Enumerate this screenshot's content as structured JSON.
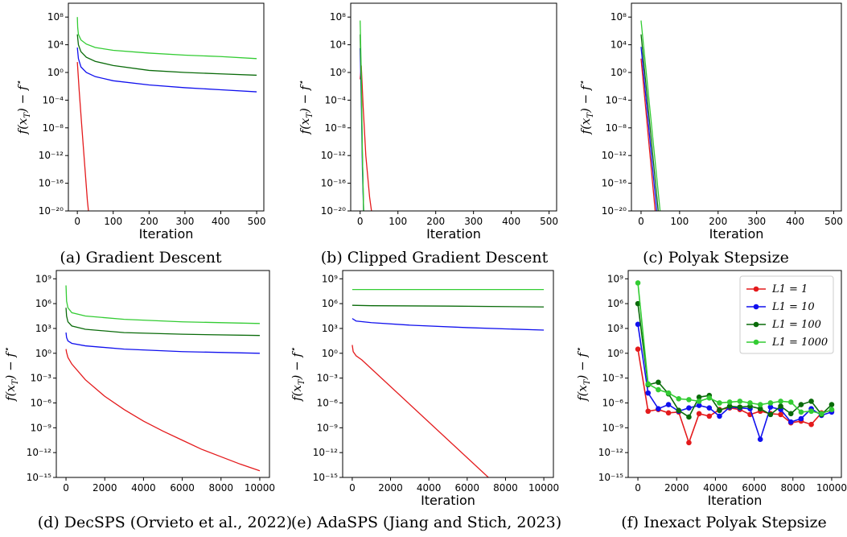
{
  "colors": {
    "L1=1": "#e41a1c",
    "L1=10": "#1010ee",
    "L1=100": "#0a6b0a",
    "L1=1000": "#33cc33"
  },
  "chart_data": [
    {
      "id": "a",
      "type": "line",
      "caption": "(a) Gradient Descent",
      "xlabel": "Iteration",
      "ylabel": "f(x_T) − f*",
      "yscale": "log",
      "xlim": [
        -25,
        520
      ],
      "ylim_exp": [
        -20,
        10
      ],
      "xticks": [
        0,
        100,
        200,
        300,
        400,
        500
      ],
      "ytick_exps": [
        -20,
        -16,
        -12,
        -8,
        -4,
        0,
        4,
        8
      ],
      "series": [
        {
          "key": "L1=1",
          "x": [
            0,
            5,
            12,
            20,
            28,
            35
          ],
          "y_exp": [
            1.5,
            -2.5,
            -7.5,
            -13,
            -18.5,
            -22
          ]
        },
        {
          "key": "L1=10",
          "x": [
            0,
            3,
            10,
            25,
            50,
            100,
            200,
            300,
            400,
            500
          ],
          "y_exp": [
            3.6,
            2,
            0.8,
            0,
            -0.6,
            -1.2,
            -1.8,
            -2.2,
            -2.5,
            -2.8
          ]
        },
        {
          "key": "L1=100",
          "x": [
            0,
            3,
            10,
            25,
            50,
            100,
            200,
            300,
            400,
            500
          ],
          "y_exp": [
            5.5,
            4,
            3,
            2.2,
            1.6,
            1,
            0.3,
            0,
            -0.2,
            -0.4
          ]
        },
        {
          "key": "L1=1000",
          "x": [
            0,
            1,
            3,
            10,
            25,
            50,
            100,
            200,
            300,
            400,
            500
          ],
          "y_exp": [
            8,
            6.5,
            5.5,
            4.7,
            4.1,
            3.6,
            3.2,
            2.8,
            2.5,
            2.3,
            2.0
          ]
        }
      ]
    },
    {
      "id": "b",
      "type": "line",
      "caption": "(b) Clipped Gradient Descent",
      "xlabel": "Iteration",
      "ylabel": "f(x_T) − f*",
      "yscale": "log",
      "xlim": [
        -25,
        520
      ],
      "ylim_exp": [
        -20,
        10
      ],
      "xticks": [
        0,
        100,
        200,
        300,
        400,
        500
      ],
      "ytick_exps": [
        -20,
        -16,
        -12,
        -8,
        -4,
        0,
        4,
        8
      ],
      "series": [
        {
          "key": "L1=1",
          "x": [
            0,
            3,
            8,
            15,
            25,
            35
          ],
          "y_exp": [
            -1,
            1,
            -5,
            -12,
            -18,
            -22
          ]
        },
        {
          "key": "L1=10",
          "x": [
            0,
            3,
            6,
            10
          ],
          "y_exp": [
            3.5,
            -4,
            -14,
            -22
          ]
        },
        {
          "key": "L1=100",
          "x": [
            0,
            3,
            6,
            10
          ],
          "y_exp": [
            5.5,
            -2,
            -12,
            -22
          ]
        },
        {
          "key": "L1=1000",
          "x": [
            0,
            3,
            6,
            10
          ],
          "y_exp": [
            7.5,
            0,
            -12,
            -22
          ]
        }
      ]
    },
    {
      "id": "c",
      "type": "line",
      "caption": "(c) Polyak Stepsize",
      "xlabel": "Iteration",
      "ylabel": "f(x_T) − f*",
      "yscale": "log",
      "xlim": [
        -25,
        520
      ],
      "ylim_exp": [
        -20,
        10
      ],
      "xticks": [
        0,
        100,
        200,
        300,
        400,
        500
      ],
      "ytick_exps": [
        -20,
        -16,
        -12,
        -8,
        -4,
        0,
        4,
        8
      ],
      "series": [
        {
          "key": "L1=1",
          "x": [
            0,
            40
          ],
          "y_exp": [
            2,
            -22
          ]
        },
        {
          "key": "L1=10",
          "x": [
            0,
            44
          ],
          "y_exp": [
            3.7,
            -22
          ]
        },
        {
          "key": "L1=100",
          "x": [
            0,
            48
          ],
          "y_exp": [
            5.5,
            -22
          ]
        },
        {
          "key": "L1=1000",
          "x": [
            0,
            53
          ],
          "y_exp": [
            7.5,
            -22
          ]
        }
      ]
    },
    {
      "id": "d",
      "type": "line",
      "caption": "(d) DecSPS (Orvieto et al., 2022)",
      "xlabel": "",
      "ylabel": "f(x_T) − f*",
      "yscale": "log",
      "xlim": [
        -500,
        10500
      ],
      "ylim_exp": [
        -15,
        10
      ],
      "xticks": [
        0,
        2000,
        4000,
        6000,
        8000,
        10000
      ],
      "ytick_exps": [
        -15,
        -12,
        -9,
        -6,
        -3,
        0,
        3,
        6,
        9
      ],
      "series": [
        {
          "key": "L1=1",
          "x": [
            0,
            30,
            100,
            300,
            1000,
            2000,
            3000,
            4000,
            5000,
            6000,
            7000,
            8000,
            9000,
            10000
          ],
          "y_exp": [
            0.5,
            0.1,
            -0.5,
            -1.3,
            -3.2,
            -5.2,
            -6.8,
            -8.2,
            -9.4,
            -10.5,
            -11.6,
            -12.5,
            -13.4,
            -14.2
          ]
        },
        {
          "key": "L1=10",
          "x": [
            0,
            30,
            100,
            300,
            1000,
            3000,
            6000,
            10000
          ],
          "y_exp": [
            2.5,
            1.9,
            1.5,
            1.2,
            0.9,
            0.5,
            0.2,
            0
          ]
        },
        {
          "key": "L1=100",
          "x": [
            0,
            30,
            100,
            300,
            1000,
            3000,
            6000,
            10000
          ],
          "y_exp": [
            5.5,
            4.5,
            3.8,
            3.3,
            2.9,
            2.5,
            2.3,
            2.15
          ]
        },
        {
          "key": "L1=1000",
          "x": [
            0,
            30,
            100,
            300,
            1000,
            3000,
            6000,
            10000
          ],
          "y_exp": [
            8.2,
            6.3,
            5.5,
            4.9,
            4.5,
            4.1,
            3.8,
            3.6
          ]
        }
      ]
    },
    {
      "id": "e",
      "type": "line",
      "caption": "(e) AdaSPS (Jiang and Stich, 2023)",
      "xlabel": "Iteration",
      "ylabel": "f(x_T) − f*",
      "yscale": "log",
      "xlim": [
        -500,
        10500
      ],
      "ylim_exp": [
        -15,
        10
      ],
      "xticks": [
        0,
        2000,
        4000,
        6000,
        8000,
        10000
      ],
      "ytick_exps": [
        -15,
        -12,
        -9,
        -6,
        -3,
        0,
        3,
        6,
        9
      ],
      "series": [
        {
          "key": "L1=1",
          "x": [
            0,
            50,
            200,
            500,
            7200
          ],
          "y_exp": [
            1,
            0.2,
            -0.3,
            -0.8,
            -15.2
          ]
        },
        {
          "key": "L1=10",
          "x": [
            0,
            200,
            1000,
            3000,
            6000,
            10000
          ],
          "y_exp": [
            4.2,
            3.9,
            3.7,
            3.4,
            3.1,
            2.8
          ]
        },
        {
          "key": "L1=100",
          "x": [
            0,
            1000,
            5000,
            10000
          ],
          "y_exp": [
            5.8,
            5.75,
            5.7,
            5.6
          ]
        },
        {
          "key": "L1=1000",
          "x": [
            0,
            10000
          ],
          "y_exp": [
            7.7,
            7.7
          ]
        }
      ]
    },
    {
      "id": "f",
      "type": "line",
      "caption": "(f) Inexact Polyak Stepsize",
      "xlabel": "Iteration",
      "ylabel": "f(x_T) − f*",
      "yscale": "log",
      "markers": true,
      "legend_position": "top-right",
      "xlim": [
        -500,
        10500
      ],
      "ylim_exp": [
        -15,
        10
      ],
      "xticks": [
        0,
        2000,
        4000,
        6000,
        8000,
        10000
      ],
      "ytick_exps": [
        -15,
        -12,
        -9,
        -6,
        -3,
        0,
        3,
        6,
        9
      ],
      "series": [
        {
          "key": "L1=1",
          "label": "L1 = 1",
          "x": [
            0,
            526,
            1053,
            1579,
            2105,
            2632,
            3158,
            3684,
            4211,
            4737,
            5263,
            5789,
            6316,
            6842,
            7368,
            7895,
            8421,
            8947,
            9474,
            10000
          ],
          "y_exp": [
            0.5,
            -7.0,
            -6.8,
            -7.2,
            -7.1,
            -10.8,
            -7.3,
            -7.6,
            -6.8,
            -6.6,
            -6.8,
            -7.4,
            -7.0,
            -7.3,
            -7.4,
            -8.4,
            -8.2,
            -8.6,
            -7.2,
            -6.9
          ]
        },
        {
          "key": "L1=10",
          "label": "L1 = 10",
          "x": [
            0,
            526,
            1053,
            1579,
            2105,
            2632,
            3158,
            3684,
            4211,
            4737,
            5263,
            5789,
            6316,
            6842,
            7368,
            7895,
            8421,
            8947,
            9474,
            10000
          ],
          "y_exp": [
            3.5,
            -4.8,
            -6.7,
            -6.2,
            -7.0,
            -6.6,
            -6.3,
            -6.6,
            -7.6,
            -6.5,
            -6.6,
            -6.7,
            -10.4,
            -6.5,
            -6.8,
            -8.3,
            -7.9,
            -6.7,
            -7.5,
            -7.1
          ]
        },
        {
          "key": "L1=100",
          "label": "L1 = 100",
          "x": [
            0,
            526,
            1053,
            1579,
            2105,
            2632,
            3158,
            3684,
            4211,
            4737,
            5263,
            5789,
            6316,
            6842,
            7368,
            7895,
            8421,
            8947,
            9474,
            10000
          ],
          "y_exp": [
            6.0,
            -3.8,
            -3.5,
            -4.9,
            -6.9,
            -7.7,
            -5.3,
            -5.1,
            -6.9,
            -6.4,
            -6.5,
            -6.4,
            -6.7,
            -7.4,
            -6.4,
            -7.3,
            -6.2,
            -5.8,
            -7.4,
            -6.2
          ]
        },
        {
          "key": "L1=1000",
          "label": "L1 = 1000",
          "x": [
            0,
            526,
            1053,
            1579,
            2105,
            2632,
            3158,
            3684,
            4211,
            4737,
            5263,
            5789,
            6316,
            6842,
            7368,
            7895,
            8421,
            8947,
            9474,
            10000
          ],
          "y_exp": [
            8.5,
            -3.7,
            -4.4,
            -4.8,
            -5.5,
            -5.6,
            -5.8,
            -5.4,
            -6.0,
            -5.9,
            -5.8,
            -6.0,
            -6.2,
            -6.0,
            -5.8,
            -5.9,
            -7.1,
            -7.0,
            -7.3,
            -6.8
          ]
        }
      ]
    }
  ]
}
